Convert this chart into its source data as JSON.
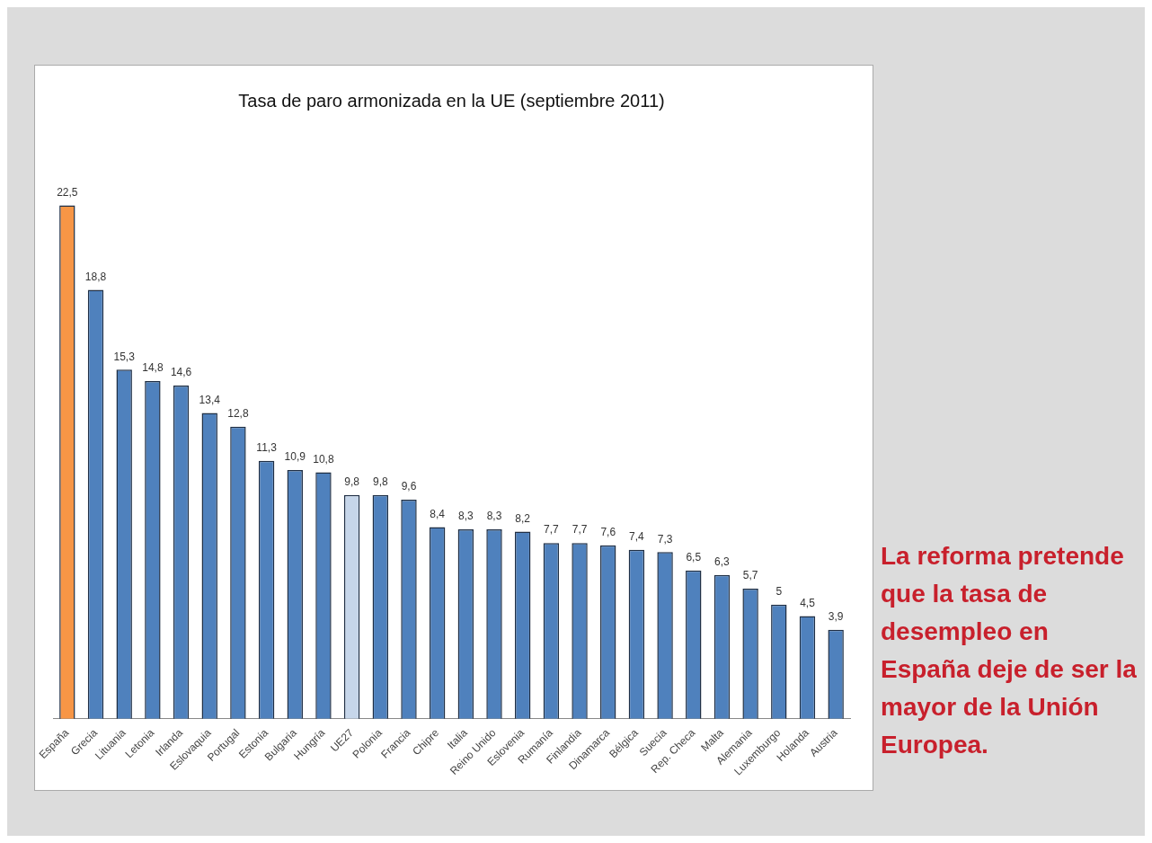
{
  "chart_data": {
    "type": "bar",
    "title": "Tasa de paro armonizada en la UE (septiembre 2011)",
    "categories": [
      "España",
      "Grecia",
      "Lituania",
      "Letonia",
      "Irlanda",
      "Eslovaquia",
      "Portugal",
      "Estonia",
      "Bulgaria",
      "Hungría",
      "UE27",
      "Polonia",
      "Francia",
      "Chipre",
      "Italia",
      "Reino Unido",
      "Eslovenia",
      "Rumanía",
      "Finlandia",
      "Dinamarca",
      "Bélgica",
      "Suecia",
      "Rep. Checa",
      "Malta",
      "Alemania",
      "Luxemburgo",
      "Holanda",
      "Austria"
    ],
    "values": [
      22.5,
      18.8,
      15.3,
      14.8,
      14.6,
      13.4,
      12.8,
      11.3,
      10.9,
      10.8,
      9.8,
      9.8,
      9.6,
      8.4,
      8.3,
      8.3,
      8.2,
      7.7,
      7.7,
      7.6,
      7.4,
      7.3,
      6.5,
      6.3,
      5.7,
      5,
      4.5,
      3.9
    ],
    "value_labels": [
      "22,5",
      "18,8",
      "15,3",
      "14,8",
      "14,6",
      "13,4",
      "12,8",
      "11,3",
      "10,9",
      "10,8",
      "9,8",
      "9,8",
      "9,6",
      "8,4",
      "8,3",
      "8,3",
      "8,2",
      "7,7",
      "7,7",
      "7,6",
      "7,4",
      "7,3",
      "6,5",
      "6,3",
      "5,7",
      "5",
      "4,5",
      "3,9"
    ],
    "colors": [
      "#f79646",
      "#4f81bd",
      "#4f81bd",
      "#4f81bd",
      "#4f81bd",
      "#4f81bd",
      "#4f81bd",
      "#4f81bd",
      "#4f81bd",
      "#4f81bd",
      "#c6d6ea",
      "#4f81bd",
      "#4f81bd",
      "#4f81bd",
      "#4f81bd",
      "#4f81bd",
      "#4f81bd",
      "#4f81bd",
      "#4f81bd",
      "#4f81bd",
      "#4f81bd",
      "#4f81bd",
      "#4f81bd",
      "#4f81bd",
      "#4f81bd",
      "#4f81bd",
      "#4f81bd",
      "#4f81bd"
    ],
    "annotations": [
      "La reforma pretende que la tasa de desempleo en España deje de ser la mayor de la Unión Europea."
    ],
    "grid": false,
    "legend": false
  }
}
